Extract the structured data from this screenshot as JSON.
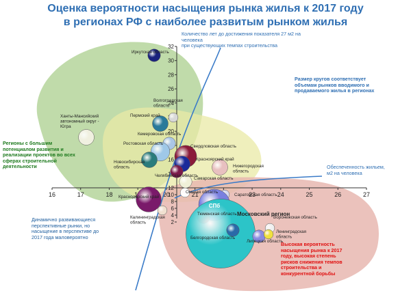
{
  "title_line1": "Оценка вероятности насыщения рынка жилья к 2017 году",
  "title_line2": "в регионах РФ с наиболее развитым рынком жилья",
  "annotations": {
    "y_axis_note_line1": "Количество лет до достижения показателя 27 м2 на человека",
    "y_axis_note_line2": "при существующих темпах строительства",
    "size_note_line1": "Размер кругов соответствует",
    "size_note_line2": "объемам рынков вводимого и",
    "size_note_line3": "продаваемого жилья в регионах",
    "x_axis_note_line1": "Обеспеченность жильем,",
    "x_axis_note_line2": "м2 на человека",
    "green_zone_line1": "Регионы с большим",
    "green_zone_line2": "потенциалом развития и",
    "green_zone_line3": "реализации проектов во всех",
    "green_zone_line4": "сферах строительной",
    "green_zone_line5": "деятельности",
    "blue_zone_line1": "Динамично развивающиеся",
    "blue_zone_line2": "перспективные рынки, но",
    "blue_zone_line3": "насыщение в перспективе до",
    "blue_zone_line4": "2017 года маловероятно",
    "red_zone_line1": "Высокая вероятность",
    "red_zone_line2": "насыщения рынка к 2017",
    "red_zone_line3": "году, высокая степень",
    "red_zone_line4": "рисков снижения темпов",
    "red_zone_line5": "строительства и",
    "red_zone_line6": "конкурентной борьбы"
  },
  "colors": {
    "title": "#2f6fb3",
    "axis_note": "#2f6fb3",
    "green_text": "#1e7a1e",
    "red_text": "#e01010",
    "blue_text": "#1f5f9f",
    "zone_green": "#b9d7a1",
    "zone_yellow": "#e9e9a6",
    "zone_red": "#e8b7b0",
    "curve": "#3a7bc8"
  },
  "chart_data": {
    "type": "scatter",
    "x_ticks": [
      "16",
      "17",
      "18",
      "19",
      "20",
      "21",
      "22",
      "23",
      "24",
      "25",
      "26",
      "27"
    ],
    "y_ticks": [
      "2",
      "4",
      "6",
      "8",
      "10",
      "12",
      "14",
      "16",
      "18",
      "20",
      "22",
      "24",
      "26",
      "28",
      "30",
      "32"
    ],
    "xlim": [
      16,
      27
    ],
    "ylim": [
      0,
      32
    ],
    "points": [
      {
        "label": "Иркутская область",
        "x": 20.3,
        "y": 31.0,
        "size": 4,
        "color": "#1a237e"
      },
      {
        "label": "Волгоградская область",
        "x": 20.9,
        "y": 23.5,
        "size": 3,
        "color": "#d8d8d8"
      },
      {
        "label": "Пермский край",
        "x": 20.4,
        "y": 20.5,
        "size": 5,
        "color": "#2a7a9a"
      },
      {
        "label": "Ханты-Мансийский автономный округ - Югра",
        "x": 17.3,
        "y": 18.5,
        "size": 5,
        "color": "#f0f0e0"
      },
      {
        "label": "Кемеровская область",
        "x": 20.8,
        "y": 17.0,
        "size": 4,
        "color": "#aac6e6"
      },
      {
        "label": "Ростовская область",
        "x": 20.5,
        "y": 16.0,
        "size": 6,
        "color": "#9fc8e8"
      },
      {
        "label": "Новосибирская область",
        "x": 20.0,
        "y": 14.0,
        "size": 5,
        "color": "#2a7c7c"
      },
      {
        "label": "Свердловская область",
        "x": 21.2,
        "y": 15.5,
        "size": 7,
        "color": "#8a1a3a"
      },
      {
        "label": "Красноярский край",
        "x": 21.3,
        "y": 14.5,
        "size": 5,
        "color": "#1a2a9a"
      },
      {
        "label": "Нижегородская область",
        "x": 22.7,
        "y": 14.2,
        "size": 5,
        "color": "#e8c0c0"
      },
      {
        "label": "Челябинская область",
        "x": 21.1,
        "y": 13.0,
        "size": 4,
        "color": "#7a1a4a"
      },
      {
        "label": "Самарская область",
        "x": 21.5,
        "y": 11.5,
        "size": 4,
        "color": "#f0f0d8"
      },
      {
        "label": "Омская область",
        "x": 21.4,
        "y": 10.3,
        "size": 3,
        "color": "#ffffff"
      },
      {
        "label": "Краснодарский край",
        "x": 20.0,
        "y": 8.2,
        "size": 8,
        "color": "#7a1a6a"
      },
      {
        "label": "Саратовская область",
        "x": 22.8,
        "y": 9.3,
        "size": 3,
        "color": "#d8d8f0"
      },
      {
        "label": "Калининградская область",
        "x": 20.5,
        "y": 6.8,
        "size": 3,
        "color": "#f0e0d0"
      },
      {
        "label": "СПб",
        "x": 22.1,
        "y": 5.5,
        "size": 10,
        "color": "#7a80e0"
      },
      {
        "label": "Тюменская область",
        "x": 21.8,
        "y": 5.0,
        "size": 4,
        "color": "#e05050"
      },
      {
        "label": "Московский регион",
        "x": 22.8,
        "y": 3.0,
        "size": 22,
        "color": "#2cc4c8"
      },
      {
        "label": "Белгородская область",
        "x": 23.0,
        "y": 1.5,
        "size": 4,
        "color": "#2a6aa8"
      },
      {
        "label": "Липецкая область",
        "x": 24.2,
        "y": 1.0,
        "size": 4,
        "color": "#8a8ae0"
      },
      {
        "label": "Воронежская область",
        "x": 24.6,
        "y": 1.8,
        "size": 3,
        "color": "#f0f0f0"
      },
      {
        "label": "Ленинградская область",
        "x": 24.4,
        "y": 0.3,
        "size": 3,
        "color": "#f0e040"
      }
    ]
  }
}
